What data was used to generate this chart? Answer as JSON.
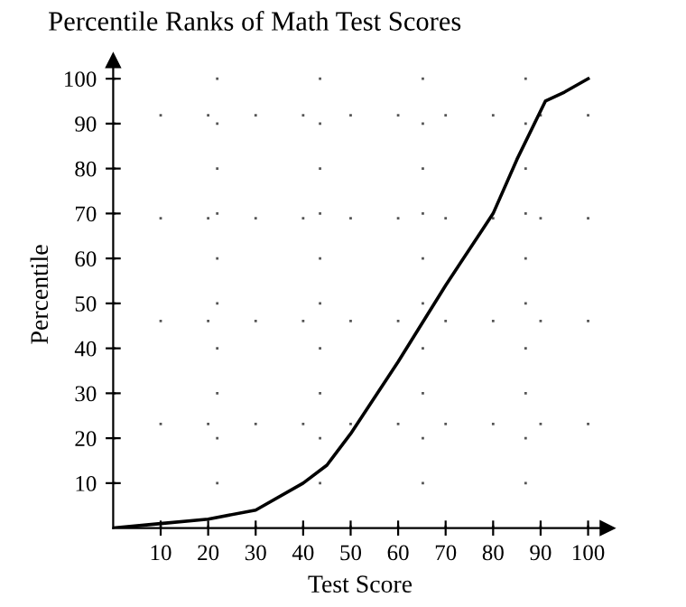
{
  "chart_data": {
    "type": "line",
    "title": "Percentile Ranks of Math Test Scores",
    "xlabel": "Test Score",
    "ylabel": "Percentile",
    "x": [
      0,
      10,
      20,
      30,
      40,
      45,
      50,
      60,
      70,
      80,
      85,
      91,
      95,
      100
    ],
    "series": [
      {
        "color": "#000000",
        "values": [
          0,
          1,
          2,
          4,
          10,
          14,
          21,
          37,
          54,
          70,
          82,
          95,
          97,
          100
        ]
      }
    ],
    "xlim": [
      0,
      104
    ],
    "ylim": [
      0,
      104
    ],
    "xticks": [
      10,
      20,
      30,
      40,
      50,
      60,
      70,
      80,
      90,
      100
    ],
    "yticks": [
      10,
      20,
      30,
      40,
      50,
      60,
      70,
      80,
      90,
      100
    ],
    "grid": true,
    "line_style": "solid",
    "marker": "none"
  }
}
